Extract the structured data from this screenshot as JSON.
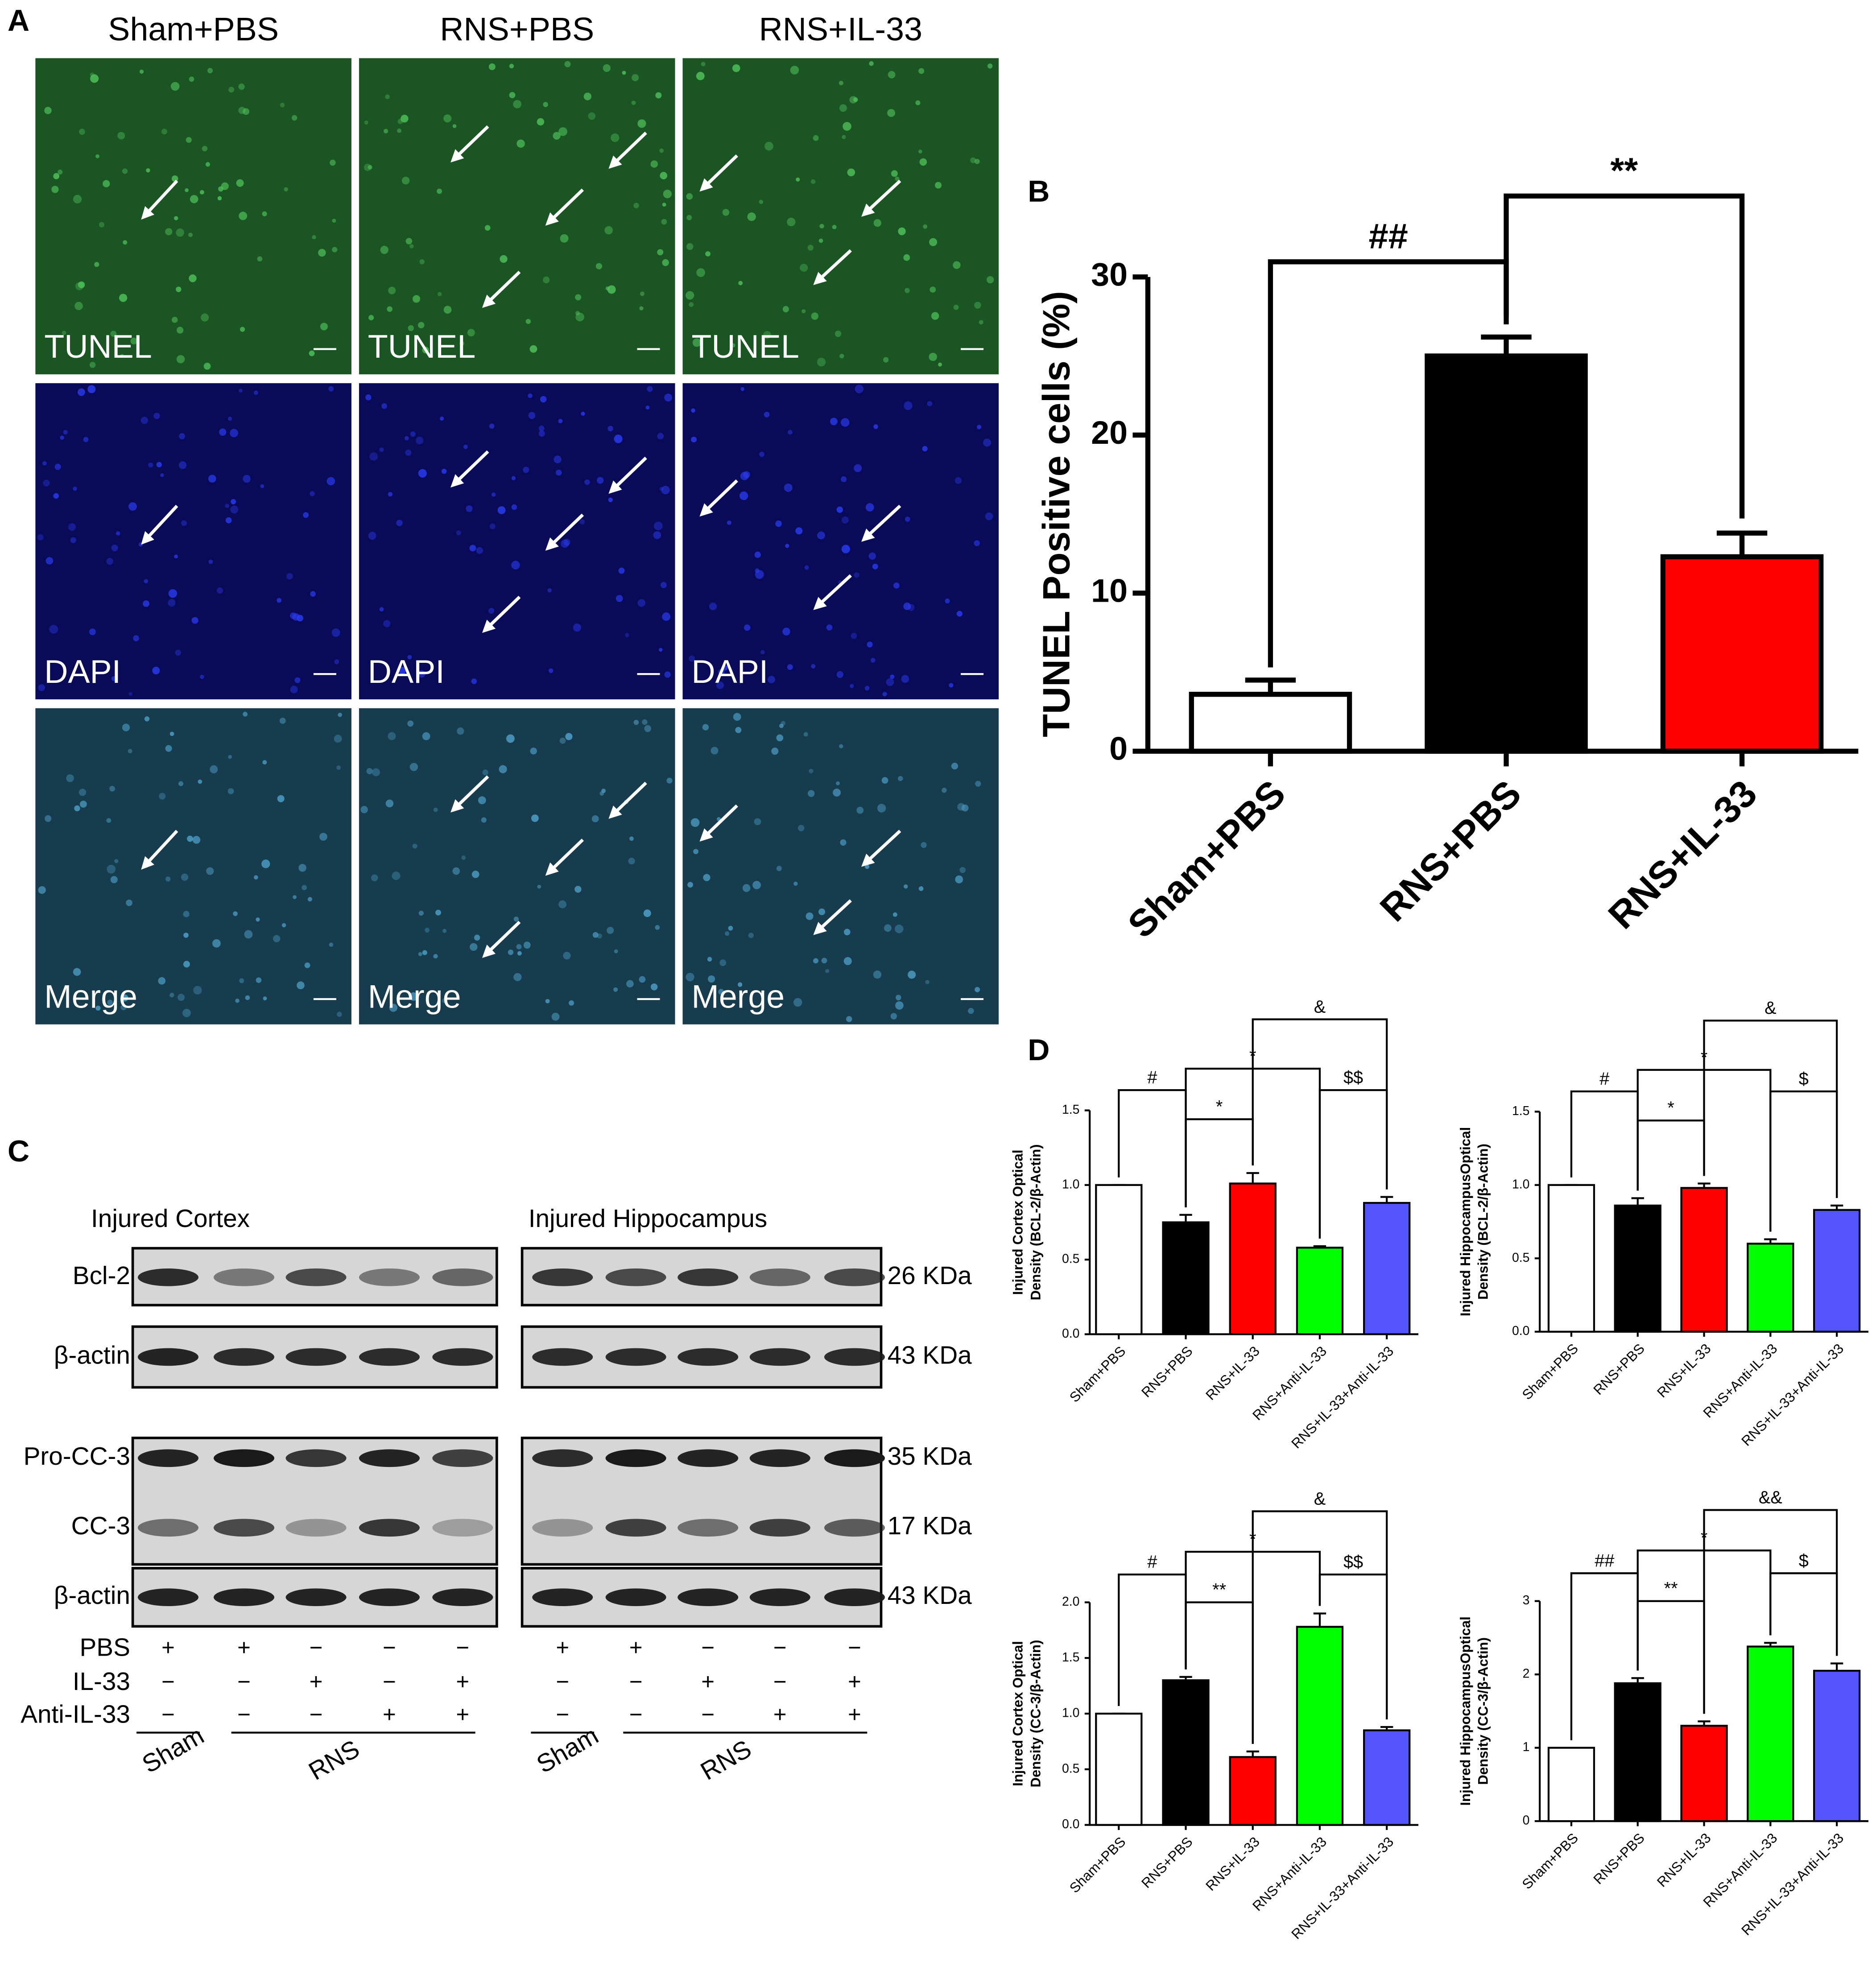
{
  "panel_labels": [
    "A",
    "B",
    "C",
    "D"
  ],
  "micrograph": {
    "groups": [
      "Sham+PBS",
      "RNS+PBS",
      "RNS+IL-33"
    ],
    "stains": [
      "TUNEL",
      "DAPI",
      "Merge"
    ]
  },
  "western": {
    "regions": [
      "Injured Cortex",
      "Injured Hippocampus"
    ],
    "proteins": [
      "Bcl-2",
      "β-actin",
      "Pro-CC-3",
      "CC-3",
      "β-actin"
    ],
    "sizes": [
      "26 KDa",
      "43 KDa",
      "35 KDa",
      "17 KDa",
      "43 KDa"
    ],
    "treatments": [
      {
        "name": "PBS",
        "signs": [
          "+",
          "+",
          "−",
          "−",
          "−"
        ]
      },
      {
        "name": "IL-33",
        "signs": [
          "−",
          "−",
          "+",
          "−",
          "+"
        ]
      },
      {
        "name": "Anti-IL-33",
        "signs": [
          "−",
          "−",
          "−",
          "+",
          "+"
        ]
      }
    ],
    "groups": [
      "Sham",
      "RNS"
    ]
  },
  "chart_data": [
    {
      "type": "bar",
      "ylabel": "TUNEL Positive cells (%)",
      "categories": [
        "Sham+PBS",
        "RNS+PBS",
        "RNS+IL-33"
      ],
      "values": [
        3.6,
        25,
        12.3
      ],
      "errors": [
        0.9,
        1.2,
        1.5
      ],
      "colors": [
        "#ffffff",
        "#000000",
        "#ff0000"
      ],
      "ylim": [
        0,
        30
      ],
      "yticks": [
        0,
        10,
        20,
        30
      ],
      "annotations": [
        "##",
        "**"
      ]
    },
    {
      "type": "bar",
      "ylabel": [
        "Injured Cortex Optical",
        "Density (BCL-2/β-Actin)"
      ],
      "categories": [
        "Sham+PBS",
        "RNS+PBS",
        "RNS+IL-33",
        "RNS+Anti-IL-33",
        "RNS+IL-33+Anti-IL-33"
      ],
      "values": [
        1.0,
        0.75,
        1.01,
        0.58,
        0.88
      ],
      "errors": [
        0,
        0.05,
        0.07,
        0.01,
        0.04
      ],
      "colors": [
        "#ffffff",
        "#000000",
        "#ff0000",
        "#00ff00",
        "#5555ff"
      ],
      "ylim": [
        0,
        1.5
      ],
      "yticks": [
        {
          "value": 0,
          "label": "0.0"
        },
        {
          "value": 0.5,
          "label": "0.5"
        },
        {
          "value": 1,
          "label": "1.0"
        },
        {
          "value": 1.5,
          "label": "1.5"
        }
      ],
      "annotations": [
        "#",
        "*",
        "*",
        "&",
        "$$"
      ]
    },
    {
      "type": "bar",
      "ylabel": [
        "Injured HippocampusOptical",
        "Density (BCL-2/β-Actin)"
      ],
      "categories": [
        "Sham+PBS",
        "RNS+PBS",
        "RNS+IL-33",
        "RNS+Anti-IL-33",
        "RNS+IL-33+Anti-IL-33"
      ],
      "values": [
        1.0,
        0.86,
        0.98,
        0.6,
        0.83
      ],
      "errors": [
        0,
        0.05,
        0.03,
        0.03,
        0.03
      ],
      "colors": [
        "#ffffff",
        "#000000",
        "#ff0000",
        "#00ff00",
        "#5555ff"
      ],
      "ylim": [
        0,
        1.5
      ],
      "yticks": [
        {
          "value": 0,
          "label": "0.0"
        },
        {
          "value": 0.5,
          "label": "0.5"
        },
        {
          "value": 1,
          "label": "1.0"
        },
        {
          "value": 1.5,
          "label": "1.5"
        }
      ],
      "annotations": [
        "#",
        "*",
        "*",
        "&",
        "$"
      ]
    },
    {
      "type": "bar",
      "ylabel": [
        "Injured Cortex Optical",
        "Density (CC-3/β-Actin)"
      ],
      "categories": [
        "Sham+PBS",
        "RNS+PBS",
        "RNS+IL-33",
        "RNS+Anti-IL-33",
        "RNS+IL-33+Anti-IL-33"
      ],
      "values": [
        1.0,
        1.3,
        0.61,
        1.78,
        0.85
      ],
      "errors": [
        0,
        0.03,
        0.05,
        0.12,
        0.03
      ],
      "colors": [
        "#ffffff",
        "#000000",
        "#ff0000",
        "#00ff00",
        "#5555ff"
      ],
      "ylim": [
        0,
        2
      ],
      "yticks": [
        {
          "value": 0,
          "label": "0.0"
        },
        {
          "value": 0.5,
          "label": "0.5"
        },
        {
          "value": 1,
          "label": "1.0"
        },
        {
          "value": 1.5,
          "label": "1.5"
        },
        {
          "value": 2,
          "label": "2.0"
        }
      ],
      "annotations": [
        "#",
        "**",
        "*",
        "&",
        "$$"
      ]
    },
    {
      "type": "bar",
      "ylabel": [
        "Injured HippocampusOptical",
        "Density (CC-3/β-Actin)"
      ],
      "categories": [
        "Sham+PBS",
        "RNS+PBS",
        "RNS+IL-33",
        "RNS+Anti-IL-33",
        "RNS+IL-33+Anti-IL-33"
      ],
      "values": [
        1.0,
        1.88,
        1.3,
        2.38,
        2.05
      ],
      "errors": [
        0,
        0.07,
        0.06,
        0.05,
        0.1
      ],
      "colors": [
        "#ffffff",
        "#000000",
        "#ff0000",
        "#00ff00",
        "#5555ff"
      ],
      "ylim": [
        0,
        3
      ],
      "yticks": [
        0,
        1,
        2,
        3
      ],
      "annotations": [
        "##",
        "**",
        "*",
        "&&",
        "$"
      ]
    }
  ]
}
